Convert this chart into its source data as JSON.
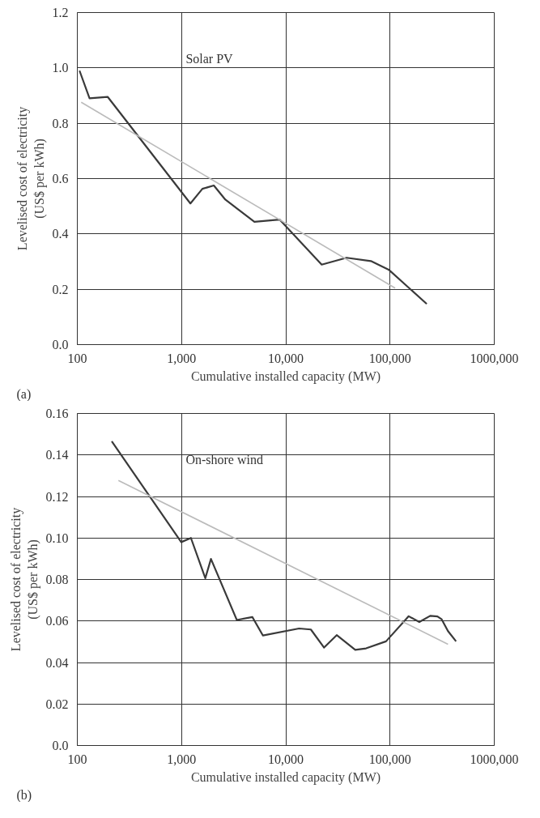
{
  "chart_data": [
    {
      "type": "line",
      "xlabel": "Cumulative installed capacity (MW)",
      "ylabel": "Levelised cost of electricity\n(US$ per kWh)",
      "log": "x",
      "grid": true,
      "annotations": [
        "(a)"
      ],
      "xlim": [
        100,
        1000000
      ],
      "xticks": [
        {
          "value": 100,
          "label": "100"
        },
        {
          "value": 1000,
          "label": "1,000"
        },
        {
          "value": 10000,
          "label": "10,000"
        },
        {
          "value": 100000,
          "label": "100,000"
        },
        {
          "value": 1000000,
          "label": "1000,000"
        }
      ],
      "ylim": [
        0,
        1.2
      ],
      "yticks": [
        {
          "value": 0,
          "label": "0.0"
        },
        {
          "value": 0.2,
          "label": "0.2"
        },
        {
          "value": 0.4,
          "label": "0.4"
        },
        {
          "value": 0.6,
          "label": "0.6"
        },
        {
          "value": 0.8,
          "label": "0.8"
        },
        {
          "value": 1.0,
          "label": "1.0"
        },
        {
          "value": 1.2,
          "label": "1.2"
        }
      ],
      "series": [
        {
          "name": "Solar PV",
          "color": "#3a3a3a",
          "x": [
            105,
            131,
            196,
            1216,
            1585,
            2040,
            2630,
            5000,
            8710,
            22100,
            38300,
            65500,
            97000,
            225000
          ],
          "values": [
            0.99,
            0.89,
            0.895,
            0.51,
            0.563,
            0.575,
            0.524,
            0.444,
            0.452,
            0.289,
            0.314,
            0.302,
            0.271,
            0.147
          ]
        },
        {
          "type": "line",
          "color": "#bbbbbb",
          "x": [
            109,
            112000
          ],
          "values": [
            0.876,
            0.204
          ]
        }
      ]
    },
    {
      "type": "line",
      "xlabel": "Cumulative installed capacity (MW)",
      "ylabel": "Levelised cost of electricity\n(US$ per kWh)",
      "log": "x",
      "grid": true,
      "annotations": [
        "(b)"
      ],
      "xlim": [
        100,
        1000000
      ],
      "xticks": [
        {
          "value": 100,
          "label": "100"
        },
        {
          "value": 1000,
          "label": "1,000"
        },
        {
          "value": 10000,
          "label": "10,000"
        },
        {
          "value": 100000,
          "label": "100,000"
        },
        {
          "value": 1000000,
          "label": "1000,000"
        }
      ],
      "ylim": [
        0,
        0.16
      ],
      "yticks": [
        {
          "value": 0,
          "label": "0.0"
        },
        {
          "value": 0.02,
          "label": "0.02"
        },
        {
          "value": 0.04,
          "label": "0.04"
        },
        {
          "value": 0.06,
          "label": "0.06"
        },
        {
          "value": 0.08,
          "label": "0.08"
        },
        {
          "value": 0.1,
          "label": "0.10"
        },
        {
          "value": 0.12,
          "label": "0.12"
        },
        {
          "value": 0.14,
          "label": "0.14"
        },
        {
          "value": 0.16,
          "label": "0.16"
        }
      ],
      "series": [
        {
          "name": "On-shore wind",
          "color": "#3a3a3a",
          "x": [
            214,
            993,
            1230,
            1690,
            1915,
            3390,
            4780,
            6040,
            13400,
            17400,
            23300,
            30800,
            46400,
            58900,
            91600,
            151000,
            191000,
            243000,
            285000,
            313000,
            360000,
            430000
          ],
          "values": [
            0.1466,
            0.098,
            0.1,
            0.0806,
            0.0899,
            0.0605,
            0.0619,
            0.053,
            0.0564,
            0.0559,
            0.0472,
            0.0532,
            0.0461,
            0.0468,
            0.0502,
            0.0623,
            0.0595,
            0.0625,
            0.0622,
            0.0608,
            0.0551,
            0.0502
          ]
        },
        {
          "type": "line",
          "color": "#bbbbbb",
          "x": [
            248,
            360000
          ],
          "values": [
            0.1277,
            0.0488
          ]
        }
      ]
    }
  ]
}
